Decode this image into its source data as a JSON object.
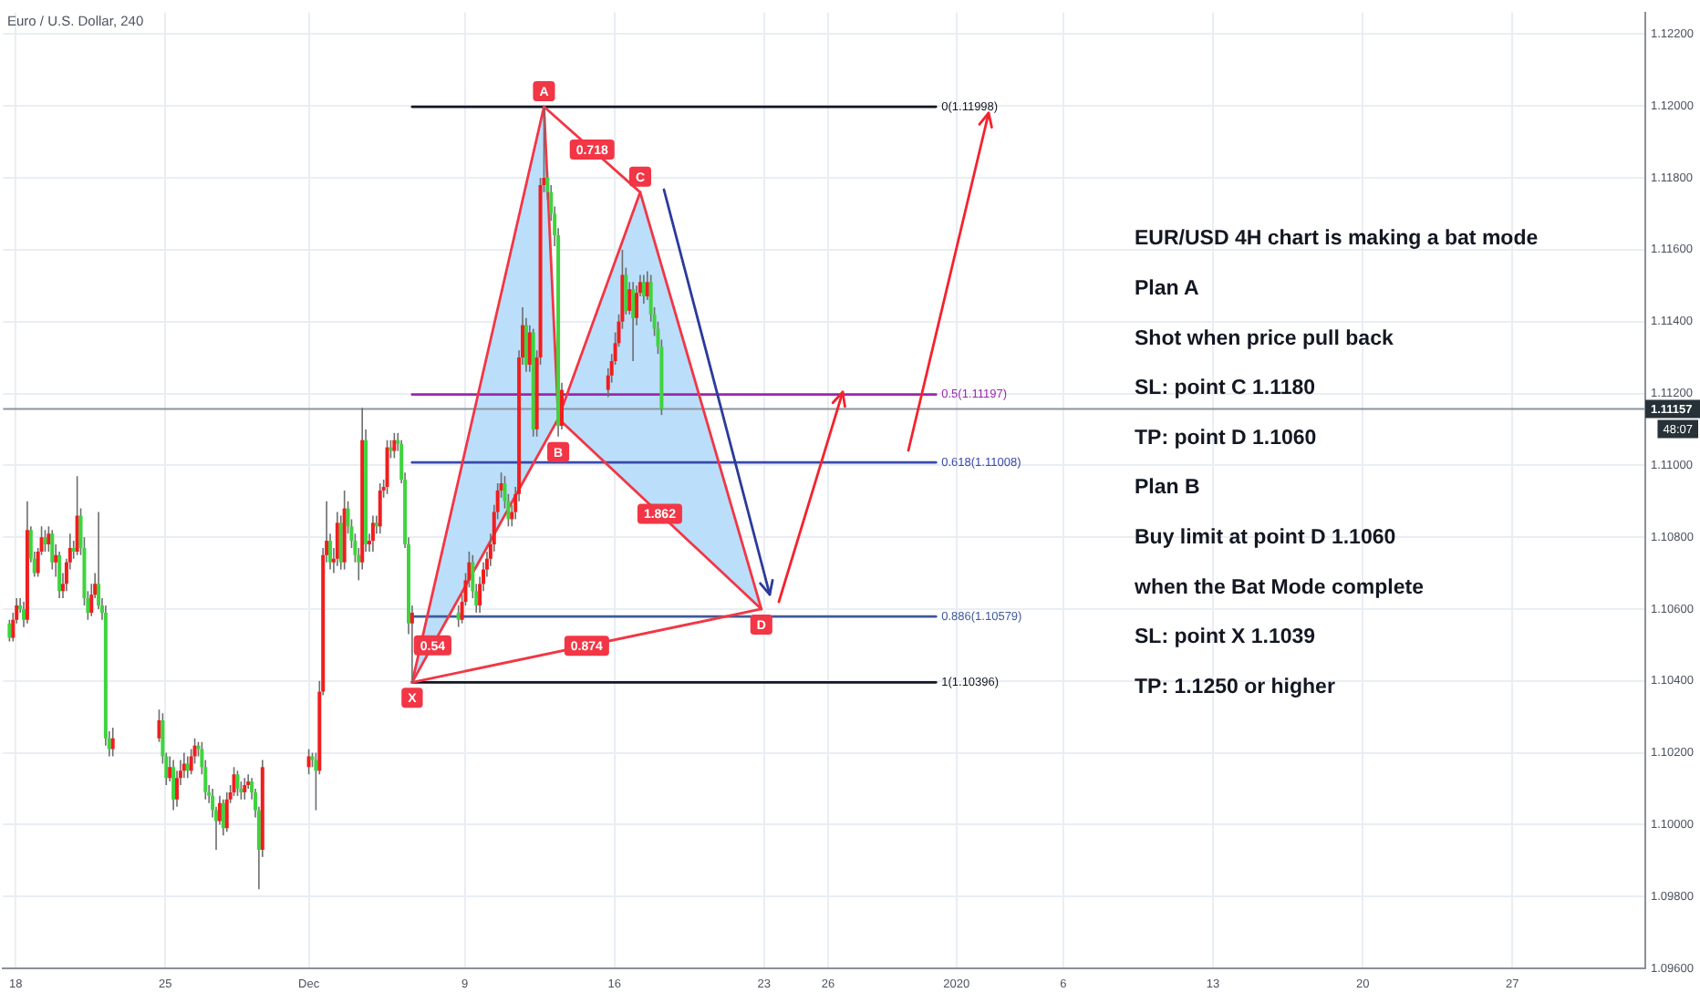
{
  "chart_data": {
    "type": "candlestick",
    "title": "Euro / U.S. Dollar, 240",
    "xlim": [
      "2019-11-17T09:40",
      "2020-02-02T05:15"
    ],
    "ylim": [
      1.096,
      1.1226
    ],
    "xticks": [
      {
        "value": "2019-11-18T00:00",
        "label": "18"
      },
      {
        "value": "2019-11-25T00:00",
        "label": "25"
      },
      {
        "value": "2019-12-01T17:00",
        "label": "Dec"
      },
      {
        "value": "2019-12-09T00:00",
        "label": "9"
      },
      {
        "value": "2019-12-16T00:00",
        "label": "16"
      },
      {
        "value": "2019-12-23T00:00",
        "label": "23"
      },
      {
        "value": "2019-12-26T00:00",
        "label": "26"
      },
      {
        "value": "2020-01-01T00:00",
        "label": "2020"
      },
      {
        "value": "2020-01-06T00:00",
        "label": "6"
      },
      {
        "value": "2020-01-13T00:00",
        "label": "13"
      },
      {
        "value": "2020-01-20T00:00",
        "label": "20"
      },
      {
        "value": "2020-01-27T00:00",
        "label": "27"
      }
    ],
    "yticks": [
      {
        "value": 1.096,
        "label": "1.09600"
      },
      {
        "value": 1.098,
        "label": "1.09800"
      },
      {
        "value": 1.1,
        "label": "1.10000"
      },
      {
        "value": 1.102,
        "label": "1.10200"
      },
      {
        "value": 1.104,
        "label": "1.10400"
      },
      {
        "value": 1.106,
        "label": "1.10600"
      },
      {
        "value": 1.108,
        "label": "1.10800"
      },
      {
        "value": 1.11,
        "label": "1.11000"
      },
      {
        "value": 1.112,
        "label": "1.11200"
      },
      {
        "value": 1.114,
        "label": "1.11400"
      },
      {
        "value": 1.116,
        "label": "1.11600"
      },
      {
        "value": 1.118,
        "label": "1.11800"
      },
      {
        "value": 1.12,
        "label": "1.12000"
      },
      {
        "value": 1.122,
        "label": "1.12200"
      }
    ],
    "grid": true,
    "series": [
      {
        "x": [
          "2019-11-17T17:00",
          "2019-11-17T21:00",
          "2019-11-18T01:00",
          "2019-11-18T05:00",
          "2019-11-18T09:00",
          "2019-11-18T13:00",
          "2019-11-18T17:00",
          "2019-11-18T21:00",
          "2019-11-19T01:00",
          "2019-11-19T05:00",
          "2019-11-19T09:00",
          "2019-11-19T13:00",
          "2019-11-19T17:00",
          "2019-11-19T21:00",
          "2019-11-20T01:00",
          "2019-11-20T05:00",
          "2019-11-20T09:00",
          "2019-11-20T13:00",
          "2019-11-20T17:00",
          "2019-11-20T21:00",
          "2019-11-21T01:00",
          "2019-11-21T05:00",
          "2019-11-21T09:00",
          "2019-11-21T13:00",
          "2019-11-21T17:00",
          "2019-11-21T21:00",
          "2019-11-22T01:00",
          "2019-11-22T05:00",
          "2019-11-22T09:00",
          "2019-11-22T13:00",
          "2019-11-24T17:00",
          "2019-11-24T21:00",
          "2019-11-25T01:00",
          "2019-11-25T05:00",
          "2019-11-25T09:00",
          "2019-11-25T13:00",
          "2019-11-25T17:00",
          "2019-11-25T21:00",
          "2019-11-26T01:00",
          "2019-11-26T05:00",
          "2019-11-26T09:00",
          "2019-11-26T13:00",
          "2019-11-26T17:00",
          "2019-11-26T21:00",
          "2019-11-27T01:00",
          "2019-11-27T05:00",
          "2019-11-27T09:00",
          "2019-11-27T13:00",
          "2019-11-27T17:00",
          "2019-11-27T21:00",
          "2019-11-28T01:00",
          "2019-11-28T05:00",
          "2019-11-28T09:00",
          "2019-11-28T13:00",
          "2019-11-28T17:00",
          "2019-11-28T21:00",
          "2019-11-29T01:00",
          "2019-11-29T05:00",
          "2019-11-29T09:00",
          "2019-11-29T13:00",
          "2019-12-01T17:00",
          "2019-12-01T21:00",
          "2019-12-02T01:00",
          "2019-12-02T05:00",
          "2019-12-02T09:00",
          "2019-12-02T13:00",
          "2019-12-02T17:00",
          "2019-12-02T21:00",
          "2019-12-03T01:00",
          "2019-12-03T05:00",
          "2019-12-03T09:00",
          "2019-12-03T13:00",
          "2019-12-03T17:00",
          "2019-12-03T21:00",
          "2019-12-04T01:00",
          "2019-12-04T05:00",
          "2019-12-04T09:00",
          "2019-12-04T13:00",
          "2019-12-04T17:00",
          "2019-12-04T21:00",
          "2019-12-05T01:00",
          "2019-12-05T05:00",
          "2019-12-05T09:00",
          "2019-12-05T13:00",
          "2019-12-05T17:00",
          "2019-12-05T21:00",
          "2019-12-06T01:00",
          "2019-12-06T05:00",
          "2019-12-06T09:00",
          "2019-12-06T13:00",
          "2019-12-08T17:00",
          "2019-12-08T21:00",
          "2019-12-09T01:00",
          "2019-12-09T05:00",
          "2019-12-09T09:00",
          "2019-12-09T13:00",
          "2019-12-09T17:00",
          "2019-12-09T21:00",
          "2019-12-10T01:00",
          "2019-12-10T05:00",
          "2019-12-10T09:00",
          "2019-12-10T13:00",
          "2019-12-10T17:00",
          "2019-12-10T21:00",
          "2019-12-11T01:00",
          "2019-12-11T05:00",
          "2019-12-11T09:00",
          "2019-12-11T13:00",
          "2019-12-11T17:00",
          "2019-12-11T21:00",
          "2019-12-12T01:00",
          "2019-12-12T05:00",
          "2019-12-12T09:00",
          "2019-12-12T13:00",
          "2019-12-12T17:00",
          "2019-12-12T21:00",
          "2019-12-13T01:00",
          "2019-12-13T05:00",
          "2019-12-13T09:00",
          "2019-12-13T13:00",
          "2019-12-15T17:00",
          "2019-12-15T21:00",
          "2019-12-16T01:00",
          "2019-12-16T05:00",
          "2019-12-16T09:00",
          "2019-12-16T13:00",
          "2019-12-16T17:00",
          "2019-12-16T21:00",
          "2019-12-17T01:00",
          "2019-12-17T05:00",
          "2019-12-17T09:00",
          "2019-12-17T13:00",
          "2019-12-17T17:00",
          "2019-12-17T21:00",
          "2019-12-18T01:00",
          "2019-12-18T05:00"
        ],
        "ohlc": [
          [
            1.1056,
            1.1057,
            1.1051,
            1.1052
          ],
          [
            1.1052,
            1.1059,
            1.1051,
            1.1057
          ],
          [
            1.1057,
            1.1063,
            1.1056,
            1.1061
          ],
          [
            1.1061,
            1.1063,
            1.1059,
            1.106
          ],
          [
            1.106,
            1.1062,
            1.1055,
            1.1057
          ],
          [
            1.1057,
            1.109,
            1.1056,
            1.1082
          ],
          [
            1.1082,
            1.1083,
            1.1073,
            1.1074
          ],
          [
            1.1074,
            1.1076,
            1.1069,
            1.107
          ],
          [
            1.107,
            1.1077,
            1.1069,
            1.1076
          ],
          [
            1.1076,
            1.1083,
            1.1075,
            1.108
          ],
          [
            1.108,
            1.1082,
            1.1076,
            1.1078
          ],
          [
            1.1078,
            1.1083,
            1.1076,
            1.1081
          ],
          [
            1.1081,
            1.1082,
            1.1071,
            1.1073
          ],
          [
            1.1073,
            1.1078,
            1.1069,
            1.1075
          ],
          [
            1.1075,
            1.1076,
            1.1063,
            1.1065
          ],
          [
            1.1065,
            1.107,
            1.1063,
            1.1067
          ],
          [
            1.1067,
            1.1074,
            1.1065,
            1.1073
          ],
          [
            1.1073,
            1.1081,
            1.1071,
            1.1077
          ],
          [
            1.1077,
            1.1079,
            1.1074,
            1.1076
          ],
          [
            1.1076,
            1.1097,
            1.1075,
            1.1086
          ],
          [
            1.1086,
            1.1088,
            1.1075,
            1.1077
          ],
          [
            1.1077,
            1.108,
            1.1061,
            1.1063
          ],
          [
            1.1063,
            1.1065,
            1.1057,
            1.1059
          ],
          [
            1.1059,
            1.1067,
            1.1058,
            1.1064
          ],
          [
            1.1064,
            1.107,
            1.1063,
            1.1067
          ],
          [
            1.1067,
            1.1087,
            1.106,
            1.1061
          ],
          [
            1.1061,
            1.1063,
            1.1057,
            1.1059
          ],
          [
            1.1059,
            1.1061,
            1.1022,
            1.1024
          ],
          [
            1.1024,
            1.1026,
            1.1019,
            1.1021
          ],
          [
            1.1021,
            1.1027,
            1.1019,
            1.1024
          ],
          [
            1.1024,
            1.1032,
            1.1023,
            1.1029
          ],
          [
            1.1029,
            1.1031,
            1.1017,
            1.1019
          ],
          [
            1.1019,
            1.102,
            1.1011,
            1.1013
          ],
          [
            1.1013,
            1.1019,
            1.1012,
            1.1016
          ],
          [
            1.1016,
            1.1018,
            1.1004,
            1.1007
          ],
          [
            1.1007,
            1.1015,
            1.1005,
            1.1013
          ],
          [
            1.1013,
            1.1018,
            1.1011,
            1.1015
          ],
          [
            1.1015,
            1.102,
            1.1013,
            1.1017
          ],
          [
            1.1017,
            1.1019,
            1.1013,
            1.1015
          ],
          [
            1.1015,
            1.1021,
            1.1014,
            1.1019
          ],
          [
            1.1019,
            1.1024,
            1.1017,
            1.1022
          ],
          [
            1.1022,
            1.1023,
            1.1019,
            1.1021
          ],
          [
            1.1021,
            1.1023,
            1.1014,
            1.1016
          ],
          [
            1.1016,
            1.1018,
            1.1007,
            1.1009
          ],
          [
            1.1009,
            1.1011,
            1.1006,
            1.1008
          ],
          [
            1.1008,
            1.101,
            1.1002,
            1.1004
          ],
          [
            1.1004,
            1.1005,
            1.0993,
            1.1001
          ],
          [
            1.1001,
            1.1008,
            1.1,
            1.1006
          ],
          [
            1.1006,
            1.1007,
            1.0997,
            1.0999
          ],
          [
            1.0999,
            1.1009,
            1.0998,
            1.1007
          ],
          [
            1.1007,
            1.1011,
            1.1006,
            1.1009
          ],
          [
            1.1009,
            1.1016,
            1.1008,
            1.1014
          ],
          [
            1.1014,
            1.1015,
            1.1008,
            1.101
          ],
          [
            1.101,
            1.1012,
            1.1007,
            1.1009
          ],
          [
            1.1009,
            1.1013,
            1.1007,
            1.1011
          ],
          [
            1.1011,
            1.1014,
            1.101,
            1.1012
          ],
          [
            1.1012,
            1.1013,
            1.1007,
            1.1009
          ],
          [
            1.1009,
            1.101,
            1.1002,
            1.1004
          ],
          [
            1.1004,
            1.1005,
            1.0982,
            1.0993
          ],
          [
            1.0993,
            1.1018,
            1.0991,
            1.1016
          ],
          [
            1.1016,
            1.1021,
            1.1014,
            1.1019
          ],
          [
            1.1019,
            1.102,
            1.1016,
            1.1018
          ],
          [
            1.1018,
            1.102,
            1.1004,
            1.1015
          ],
          [
            1.1015,
            1.104,
            1.1014,
            1.1037
          ],
          [
            1.1037,
            1.1077,
            1.1036,
            1.1075
          ],
          [
            1.1075,
            1.109,
            1.1073,
            1.1079
          ],
          [
            1.1079,
            1.1081,
            1.1071,
            1.1073
          ],
          [
            1.1073,
            1.1077,
            1.107,
            1.1074
          ],
          [
            1.1074,
            1.1087,
            1.1072,
            1.1084
          ],
          [
            1.1084,
            1.1086,
            1.1071,
            1.1073
          ],
          [
            1.1073,
            1.1093,
            1.1071,
            1.1088
          ],
          [
            1.1088,
            1.109,
            1.1081,
            1.1083
          ],
          [
            1.1083,
            1.1085,
            1.1077,
            1.1079
          ],
          [
            1.1079,
            1.1081,
            1.1073,
            1.1075
          ],
          [
            1.1075,
            1.1077,
            1.1068,
            1.1073
          ],
          [
            1.1073,
            1.1116,
            1.1071,
            1.1107
          ],
          [
            1.1107,
            1.111,
            1.1076,
            1.1078
          ],
          [
            1.1078,
            1.1081,
            1.1076,
            1.1079
          ],
          [
            1.1079,
            1.1086,
            1.1076,
            1.1084
          ],
          [
            1.1084,
            1.1086,
            1.1081,
            1.1083
          ],
          [
            1.1083,
            1.1095,
            1.1081,
            1.1093
          ],
          [
            1.1093,
            1.1096,
            1.1091,
            1.1094
          ],
          [
            1.1094,
            1.1107,
            1.1092,
            1.1105
          ],
          [
            1.1105,
            1.1107,
            1.1102,
            1.1104
          ],
          [
            1.1104,
            1.1109,
            1.1102,
            1.1107
          ],
          [
            1.1107,
            1.1109,
            1.1104,
            1.1106
          ],
          [
            1.1106,
            1.1107,
            1.1095,
            1.1096
          ],
          [
            1.1096,
            1.1098,
            1.1077,
            1.1078
          ],
          [
            1.1078,
            1.108,
            1.1053,
            1.1056
          ],
          [
            1.1056,
            1.1061,
            1.10396,
            1.1059
          ],
          [
            1.1059,
            1.1061,
            1.1055,
            1.1057
          ],
          [
            1.1057,
            1.1064,
            1.1056,
            1.1062
          ],
          [
            1.1062,
            1.107,
            1.1061,
            1.1068
          ],
          [
            1.1068,
            1.1076,
            1.1066,
            1.1073
          ],
          [
            1.1073,
            1.1075,
            1.1063,
            1.1065
          ],
          [
            1.1065,
            1.1067,
            1.1059,
            1.1061
          ],
          [
            1.1061,
            1.1069,
            1.1059,
            1.1067
          ],
          [
            1.1067,
            1.1073,
            1.1065,
            1.1071
          ],
          [
            1.1071,
            1.1076,
            1.1069,
            1.1074
          ],
          [
            1.1074,
            1.1081,
            1.1072,
            1.1078
          ],
          [
            1.1078,
            1.1089,
            1.1076,
            1.1087
          ],
          [
            1.1087,
            1.1095,
            1.1085,
            1.1093
          ],
          [
            1.1093,
            1.1098,
            1.1091,
            1.1095
          ],
          [
            1.1095,
            1.1097,
            1.1088,
            1.109
          ],
          [
            1.109,
            1.1092,
            1.1083,
            1.1085
          ],
          [
            1.1085,
            1.1089,
            1.1083,
            1.1087
          ],
          [
            1.1087,
            1.1094,
            1.1085,
            1.1092
          ],
          [
            1.1092,
            1.1132,
            1.109,
            1.113
          ],
          [
            1.113,
            1.1144,
            1.1128,
            1.1139
          ],
          [
            1.1139,
            1.1141,
            1.1126,
            1.1128
          ],
          [
            1.1128,
            1.1139,
            1.1126,
            1.1137
          ],
          [
            1.1137,
            1.1138,
            1.1108,
            1.111
          ],
          [
            1.111,
            1.1132,
            1.1108,
            1.113
          ],
          [
            1.113,
            1.118,
            1.1128,
            1.1178
          ],
          [
            1.1178,
            1.11998,
            1.1176,
            1.118
          ],
          [
            1.118,
            1.1182,
            1.1174,
            1.1176
          ],
          [
            1.1176,
            1.1178,
            1.1168,
            1.117
          ],
          [
            1.117,
            1.1172,
            1.1161,
            1.1164
          ],
          [
            1.1164,
            1.1166,
            1.1108,
            1.1111
          ],
          [
            1.1111,
            1.1123,
            1.111,
            1.1121
          ],
          [
            1.1121,
            1.1127,
            1.1119,
            1.1125
          ],
          [
            1.1125,
            1.1131,
            1.1123,
            1.1129
          ],
          [
            1.1129,
            1.1137,
            1.1128,
            1.1134
          ],
          [
            1.1134,
            1.1142,
            1.1133,
            1.114
          ],
          [
            1.114,
            1.116,
            1.1138,
            1.1153
          ],
          [
            1.1153,
            1.1155,
            1.1142,
            1.1143
          ],
          [
            1.1143,
            1.1151,
            1.1142,
            1.1149
          ],
          [
            1.1149,
            1.1151,
            1.1129,
            1.1141
          ],
          [
            1.1141,
            1.115,
            1.1139,
            1.1148
          ],
          [
            1.1148,
            1.1153,
            1.1147,
            1.1151
          ],
          [
            1.1151,
            1.1153,
            1.1145,
            1.1147
          ],
          [
            1.1147,
            1.1154,
            1.1146,
            1.1151
          ],
          [
            1.1151,
            1.1153,
            1.114,
            1.1142
          ],
          [
            1.1142,
            1.1144,
            1.1136,
            1.1138
          ],
          [
            1.1138,
            1.114,
            1.1131,
            1.1133
          ],
          [
            1.1133,
            1.1135,
            1.1114,
            1.11157
          ]
        ],
        "colors": [
          "#3ed43e",
          "#f01e1e",
          "#f01e1e",
          "#3ed43e",
          "#3ed43e",
          "#f01e1e",
          "#3ed43e",
          "#3ed43e",
          "#f01e1e",
          "#f01e1e",
          "#3ed43e",
          "#f01e1e",
          "#3ed43e",
          "#f01e1e",
          "#3ed43e",
          "#f01e1e",
          "#f01e1e",
          "#f01e1e",
          "#3ed43e",
          "#f01e1e",
          "#3ed43e",
          "#3ed43e",
          "#3ed43e",
          "#f01e1e",
          "#f01e1e",
          "#3ed43e",
          "#3ed43e",
          "#3ed43e",
          "#3ed43e",
          "#f01e1e",
          "#f01e1e",
          "#3ed43e",
          "#3ed43e",
          "#f01e1e",
          "#3ed43e",
          "#f01e1e",
          "#f01e1e",
          "#f01e1e",
          "#3ed43e",
          "#f01e1e",
          "#f01e1e",
          "#3ed43e",
          "#3ed43e",
          "#3ed43e",
          "#3ed43e",
          "#3ed43e",
          "#3ed43e",
          "#f01e1e",
          "#3ed43e",
          "#f01e1e",
          "#f01e1e",
          "#f01e1e",
          "#3ed43e",
          "#3ed43e",
          "#f01e1e",
          "#f01e1e",
          "#3ed43e",
          "#3ed43e",
          "#3ed43e",
          "#f01e1e",
          "#f01e1e",
          "#3ed43e",
          "#3ed43e",
          "#f01e1e",
          "#f01e1e",
          "#f01e1e",
          "#3ed43e",
          "#f01e1e",
          "#f01e1e",
          "#3ed43e",
          "#f01e1e",
          "#3ed43e",
          "#3ed43e",
          "#3ed43e",
          "#3ed43e",
          "#f01e1e",
          "#3ed43e",
          "#f01e1e",
          "#f01e1e",
          "#3ed43e",
          "#f01e1e",
          "#f01e1e",
          "#f01e1e",
          "#3ed43e",
          "#f01e1e",
          "#3ed43e",
          "#3ed43e",
          "#3ed43e",
          "#3ed43e",
          "#f01e1e",
          "#3ed43e",
          "#f01e1e",
          "#f01e1e",
          "#f01e1e",
          "#3ed43e",
          "#3ed43e",
          "#f01e1e",
          "#f01e1e",
          "#f01e1e",
          "#f01e1e",
          "#f01e1e",
          "#f01e1e",
          "#f01e1e",
          "#3ed43e",
          "#3ed43e",
          "#f01e1e",
          "#f01e1e",
          "#f01e1e",
          "#f01e1e",
          "#3ed43e",
          "#f01e1e",
          "#3ed43e",
          "#f01e1e",
          "#f01e1e",
          "#f01e1e",
          "#3ed43e",
          "#3ed43e",
          "#3ed43e",
          "#3ed43e",
          "#f01e1e",
          "#f01e1e",
          "#f01e1e",
          "#f01e1e",
          "#f01e1e",
          "#f01e1e",
          "#3ed43e",
          "#f01e1e",
          "#3ed43e",
          "#f01e1e",
          "#f01e1e",
          "#3ed43e",
          "#f01e1e",
          "#3ed43e",
          "#3ed43e",
          "#3ed43e",
          "#3ed43e"
        ]
      },
      {
        "type": "area",
        "color": "#bbdefb",
        "x": [
          "2019-12-06T13:00",
          "2019-12-12T17:00",
          "2019-12-13T09:00"
        ],
        "values": [
          1.10396,
          1.11998,
          1.1113
        ]
      },
      {
        "type": "area",
        "color": "#bbdefb",
        "x": [
          "2019-12-13T09:00",
          "2019-12-17T05:00",
          "2019-12-22T21:00"
        ],
        "values": [
          1.1113,
          1.1176,
          1.106
        ]
      },
      {
        "type": "line",
        "color": "#f23645",
        "x": [
          "2019-12-06T13:00",
          "2019-12-12T17:00",
          "2019-12-13T09:00",
          "2019-12-17T05:00",
          "2019-12-22T21:00"
        ],
        "values": [
          1.10396,
          1.11998,
          1.1113,
          1.1176,
          1.106
        ]
      },
      {
        "type": "line",
        "color": "#f23645",
        "x": [
          "2019-12-06T13:00",
          "2019-12-13T09:00",
          "2019-12-22T21:00"
        ],
        "values": [
          1.10396,
          1.1113,
          1.106
        ]
      },
      {
        "type": "line",
        "color": "#f23645",
        "x": [
          "2019-12-12T17:00",
          "2019-12-17T05:00"
        ],
        "values": [
          1.11998,
          1.1176
        ]
      },
      {
        "type": "line",
        "color": "#f23645",
        "x": [
          "2019-12-06T13:00",
          "2019-12-22T21:00"
        ],
        "values": [
          1.10396,
          1.106
        ]
      },
      {
        "type": "line",
        "name": "0(1.11998)",
        "color": "#131722",
        "x": [
          "2019-12-06T13:00",
          "2019-12-31T01:00"
        ],
        "values": [
          1.11998,
          1.11998
        ]
      },
      {
        "type": "line",
        "name": "0.5(1.11197)",
        "color": "#9c27b0",
        "x": [
          "2019-12-06T13:00",
          "2019-12-31T01:00"
        ],
        "values": [
          1.11197,
          1.11197
        ]
      },
      {
        "type": "line",
        "name": "0.618(1.11008)",
        "color": "#3949ab",
        "x": [
          "2019-12-06T13:00",
          "2019-12-31T01:00"
        ],
        "values": [
          1.11008,
          1.11008
        ]
      },
      {
        "type": "line",
        "name": "0.886(1.10579)",
        "color": "#3f5a9a",
        "x": [
          "2019-12-06T13:00",
          "2019-12-31T01:00"
        ],
        "values": [
          1.10579,
          1.10579
        ]
      },
      {
        "type": "line",
        "name": "1(1.10396)",
        "color": "#131722",
        "x": [
          "2019-12-06T13:00",
          "2019-12-31T01:00"
        ],
        "values": [
          1.10396,
          1.10396
        ]
      }
    ],
    "ref_lines": [
      {
        "axis": "y",
        "value": 1.11157,
        "label": "1.11157",
        "color": "#8b949e"
      }
    ],
    "annotations": [
      {
        "text": "X",
        "x": "2019-12-06T13:00",
        "y": 1.10396
      },
      {
        "text": "A",
        "x": "2019-12-12T17:00",
        "y": 1.11998
      },
      {
        "text": "B",
        "x": "2019-12-13T09:00",
        "y": 1.1113
      },
      {
        "text": "C",
        "x": "2019-12-17T05:00",
        "y": 1.1176
      },
      {
        "text": "D",
        "x": "2019-12-22T21:00",
        "y": 1.106
      },
      {
        "text": "0.718",
        "x": "2019-12-14T23:00",
        "y": 1.11879
      },
      {
        "text": "0.54",
        "x": "2019-12-07T12:00",
        "y": 1.10499
      },
      {
        "text": "1.862",
        "x": "2019-12-18T03:00",
        "y": 1.10865
      },
      {
        "text": "0.874",
        "x": "2019-12-14T17:00",
        "y": 1.10498
      },
      "48:07",
      "EUR/USD 4H chart is making a bat mode",
      "Plan A",
      "Shot when price pull back",
      "SL: point C 1.1180",
      "TP: point D 1.1060",
      "Plan B",
      "Buy limit at point D 1.1060",
      "when the Bat Mode complete",
      "SL: point X 1.1039",
      "TP: 1.1250 or higher"
    ]
  }
}
